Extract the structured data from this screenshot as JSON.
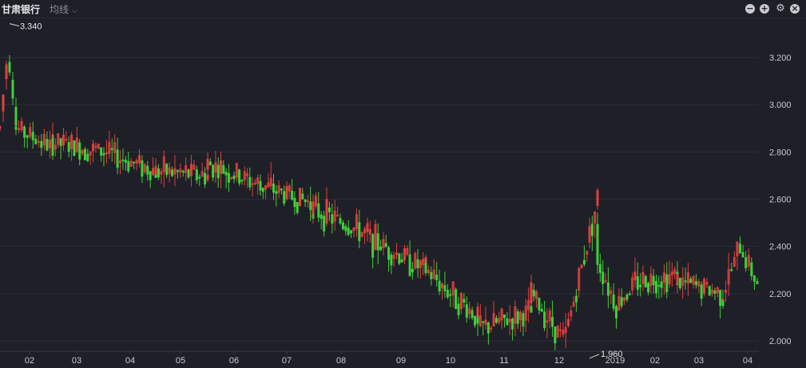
{
  "header": {
    "title": "甘肃银行",
    "ma_label": "均线",
    "buttons": [
      "zoom-out",
      "zoom-in",
      "settings",
      "close"
    ]
  },
  "colors": {
    "up": "#e0403d",
    "down": "#3fcf3a",
    "grid": "#2c2c38",
    "bg": "#1f1f27"
  },
  "chart_data": {
    "type": "candlestick",
    "title": "",
    "xlabel": "",
    "ylabel": "",
    "ylim": [
      1.96,
      3.34
    ],
    "yticks": [
      "2.000",
      "2.200",
      "2.400",
      "2.600",
      "2.800",
      "3.000",
      "3.200"
    ],
    "xticks": [
      "02",
      "03",
      "04",
      "05",
      "06",
      "07",
      "08",
      "09",
      "10",
      "11",
      "12",
      "2019",
      "02",
      "03",
      "04"
    ],
    "annotations": [
      {
        "label": "3.340",
        "value": 3.34
      },
      {
        "label": "1.960",
        "value": 1.96
      }
    ],
    "series": [
      {
        "segment": "2018-01",
        "trend": [
          2.9,
          3.25,
          2.95
        ]
      },
      {
        "segment": "2018-02",
        "trend": [
          2.9,
          2.82
        ]
      },
      {
        "segment": "2018-03",
        "trend": [
          2.84,
          2.8
        ]
      },
      {
        "segment": "2018-04",
        "trend": [
          2.8,
          2.72
        ]
      },
      {
        "segment": "2018-05",
        "trend": [
          2.72,
          2.7
        ]
      },
      {
        "segment": "2018-06",
        "trend": [
          2.75,
          2.66
        ]
      },
      {
        "segment": "2018-07",
        "trend": [
          2.66,
          2.58
        ]
      },
      {
        "segment": "2018-08",
        "trend": [
          2.56,
          2.45
        ]
      },
      {
        "segment": "2018-09",
        "trend": [
          2.44,
          2.3
        ]
      },
      {
        "segment": "2018-10",
        "trend": [
          2.3,
          2.1
        ]
      },
      {
        "segment": "2018-11",
        "trend": [
          2.05,
          2.12
        ]
      },
      {
        "segment": "2018-12",
        "trend": [
          2.2,
          2.0,
          2.6
        ]
      },
      {
        "segment": "2019-01",
        "trend": [
          2.35,
          2.15,
          2.25
        ]
      },
      {
        "segment": "2019-02",
        "trend": [
          2.25,
          2.28
        ]
      },
      {
        "segment": "2019-03",
        "trend": [
          2.25,
          2.2
        ]
      },
      {
        "segment": "2019-04",
        "trend": [
          2.2,
          2.4,
          2.25
        ]
      }
    ]
  }
}
